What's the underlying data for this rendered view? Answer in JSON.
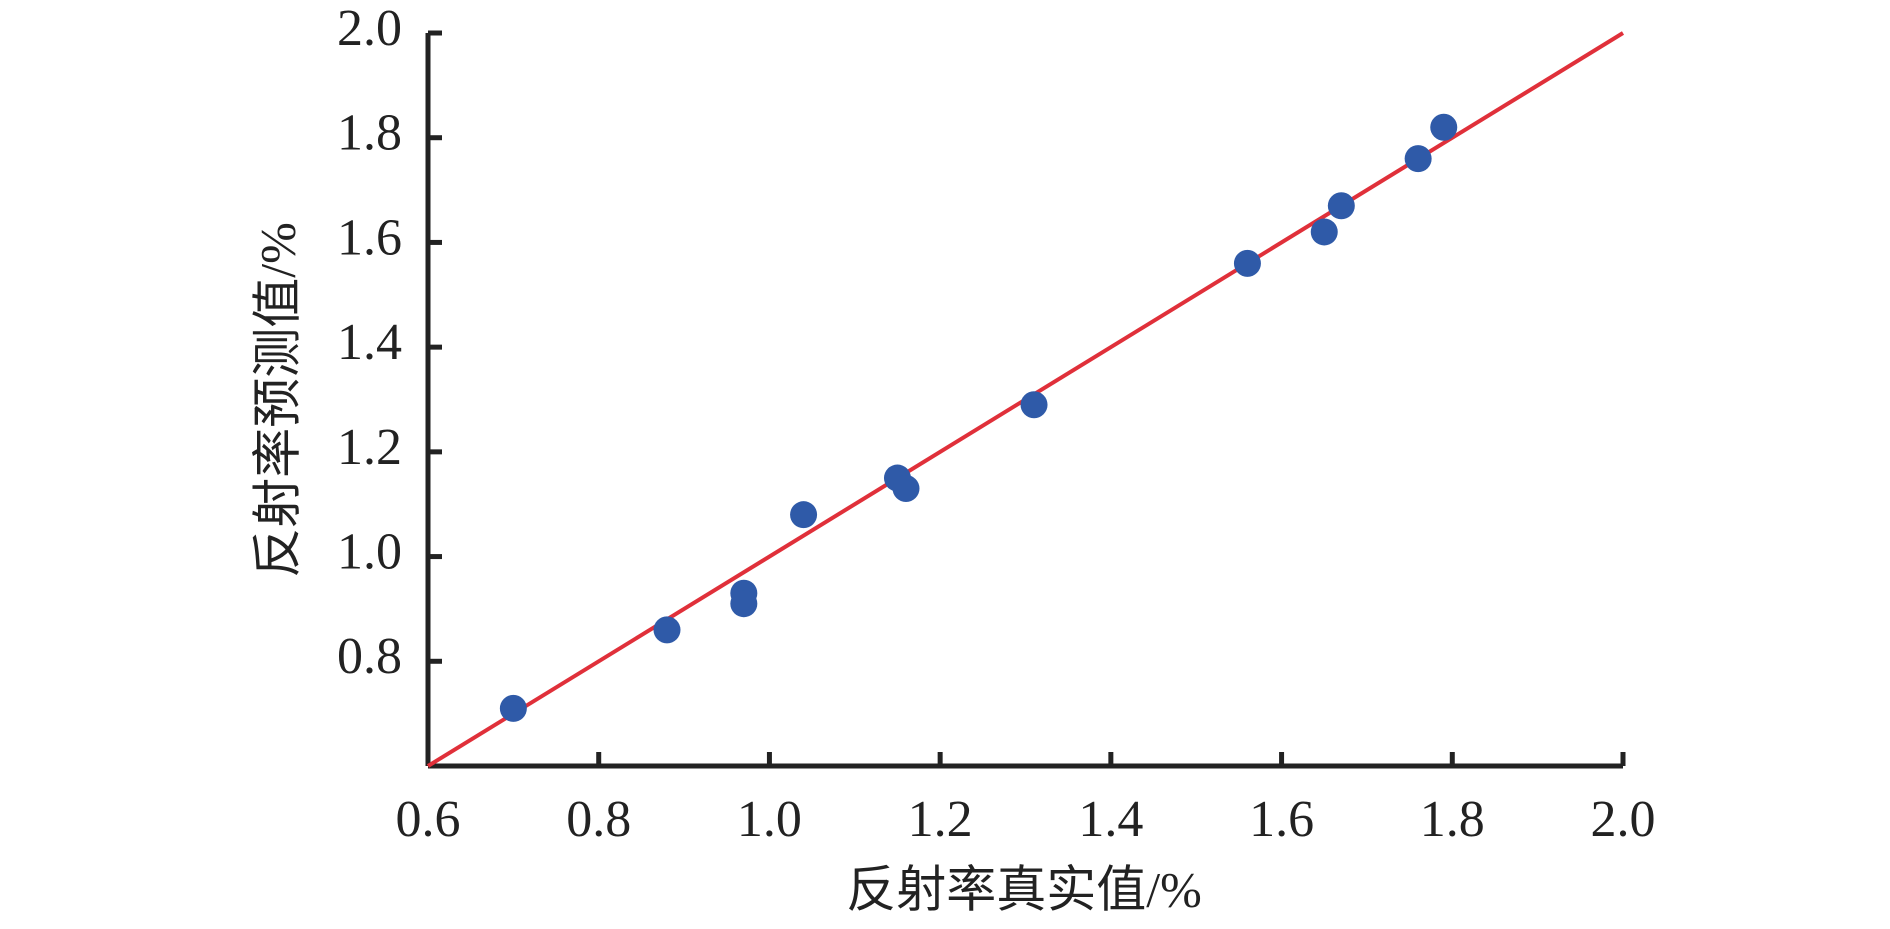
{
  "chart_data": {
    "type": "scatter",
    "x_label": "反射率真实值/%",
    "y_label": "反射率预测值/%",
    "xlim": [
      0.6,
      2.0
    ],
    "ylim": [
      0.6,
      2.0
    ],
    "xticks": [
      0.6,
      0.8,
      {
        "value": 1,
        "label": "1.0"
      },
      1.2,
      1.4,
      1.6,
      1.8,
      {
        "value": 2,
        "label": "2.0"
      }
    ],
    "yticks": [
      0.8,
      {
        "value": 1,
        "label": "1.0"
      },
      1.2,
      1.4,
      1.6,
      1.8,
      {
        "value": 2,
        "label": "2.0"
      }
    ],
    "points": {
      "color": "#2f5aa8",
      "x": [
        0.7,
        0.88,
        0.97,
        0.97,
        1.04,
        1.15,
        1.16,
        1.31,
        1.56,
        1.65,
        1.67,
        1.76,
        1.79
      ],
      "values": [
        0.71,
        0.86,
        0.93,
        0.91,
        1.08,
        1.15,
        1.13,
        1.29,
        1.56,
        1.62,
        1.67,
        1.76,
        1.82
      ]
    },
    "fit_line": {
      "color": "#e0303a",
      "x": [
        0.6,
        2.0
      ],
      "values": [
        0.6,
        2.0
      ]
    }
  }
}
